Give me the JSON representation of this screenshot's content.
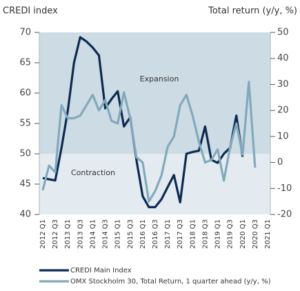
{
  "chart_data": {
    "type": "line",
    "y_label": "CREDI index",
    "y2_label": "Total return (y/y, %)",
    "annotations": [
      "Expansion",
      "Contraction"
    ],
    "categories": [
      "2012 Q1",
      null,
      "2012 Q3",
      null,
      "2013 Q1",
      null,
      "2013 Q3",
      null,
      "2014 Q1",
      null,
      "2014 Q3",
      null,
      "2015 Q1",
      null,
      "2015 Q3",
      null,
      "2016 Q1",
      null,
      "2016 Q3",
      null,
      "2017 Q1",
      null,
      "2017 Q3",
      null,
      "2018 Q1",
      null,
      "2018 Q3",
      null,
      "2019 Q1",
      null,
      "2019 Q3",
      null,
      "2020 Q1",
      null,
      "2020 Q3",
      null,
      "2021 Q1"
    ],
    "series": [
      {
        "name": "CREDI Main Index",
        "color": "#0d2a52",
        "axis": "y",
        "values": [
          46,
          45.8,
          45.6,
          51,
          57,
          65,
          69.2,
          68.5,
          67.5,
          66.2,
          57.5,
          59,
          60.3,
          54.5,
          56,
          49,
          43,
          41.2,
          41.2,
          42.5,
          44.5,
          46.5,
          42,
          50,
          50.3,
          50.5,
          54.5,
          49,
          48.5,
          50,
          51,
          56.3,
          49.5,
          null,
          null,
          null,
          null
        ]
      },
      {
        "name": "OMX Stockholm 30, Total Return, 1 quarter ahead (y/y, %)",
        "color": "#82a9bb",
        "axis": "y2",
        "values": [
          -10.7,
          -1.2,
          -3.8,
          22,
          17,
          17,
          18,
          22,
          26,
          20,
          24,
          16,
          15,
          27,
          17,
          2,
          0,
          -15,
          -11,
          -5,
          6,
          10,
          22,
          26,
          18,
          8,
          0,
          1,
          5,
          -7,
          6,
          15,
          3,
          31,
          -2,
          null,
          null
        ]
      }
    ],
    "ylim": [
      40,
      70
    ],
    "yticks": [
      40,
      45,
      50,
      55,
      60,
      65,
      70
    ],
    "y2lim": [
      -20,
      50
    ],
    "y2ticks": [
      -20,
      -10,
      0,
      10,
      20,
      30,
      40,
      50
    ]
  }
}
